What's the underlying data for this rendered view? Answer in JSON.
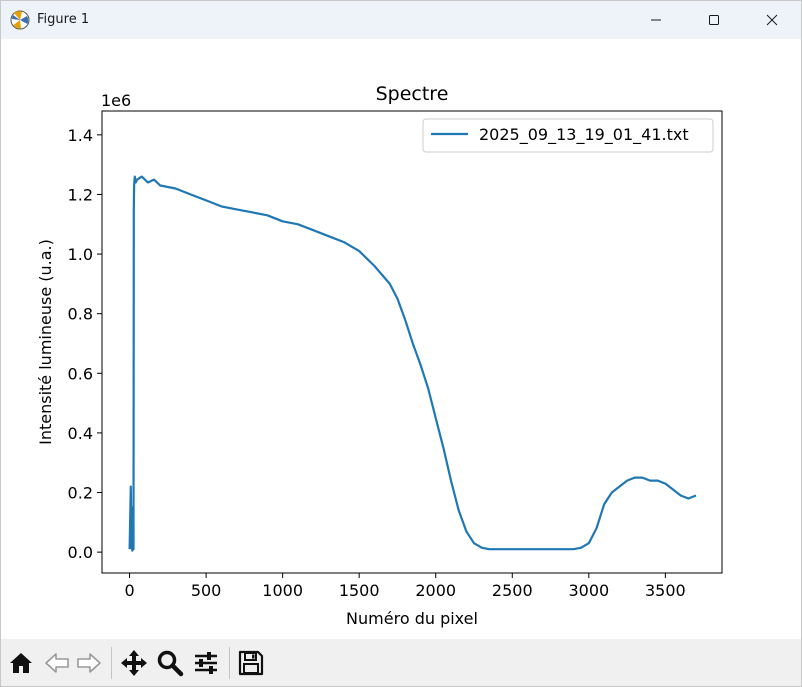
{
  "window": {
    "title": "Figure 1",
    "icon": "matplotlib-icon",
    "controls": [
      "minimize-icon",
      "maximize-icon",
      "close-icon"
    ]
  },
  "toolbar": {
    "buttons": [
      {
        "name": "home-button",
        "icon": "home-icon"
      },
      {
        "name": "back-button",
        "icon": "back-arrow-icon"
      },
      {
        "name": "forward-button",
        "icon": "forward-arrow-icon"
      },
      {
        "name": "pan-button",
        "icon": "move-icon"
      },
      {
        "name": "zoom-button",
        "icon": "zoom-icon"
      },
      {
        "name": "configure-subplots-button",
        "icon": "sliders-icon"
      },
      {
        "name": "save-button",
        "icon": "save-icon"
      }
    ]
  },
  "chart_data": {
    "type": "line",
    "title": "Spectre",
    "xlabel": "Numéro du pixel",
    "ylabel": "Intensité lumineuse (u.a.)",
    "y_offset_label": "1e6",
    "xlim": [
      -180,
      3870
    ],
    "ylim": [
      -0.07,
      1.48
    ],
    "xticks": [
      0,
      500,
      1000,
      1500,
      2000,
      2500,
      3000,
      3500
    ],
    "xtick_labels": [
      "0",
      "500",
      "1000",
      "1500",
      "2000",
      "2500",
      "3000",
      "3500"
    ],
    "yticks": [
      0.0,
      0.2,
      0.4,
      0.6,
      0.8,
      1.0,
      1.2,
      1.4
    ],
    "ytick_labels": [
      "0.0",
      "0.2",
      "0.4",
      "0.6",
      "0.8",
      "1.0",
      "1.2",
      "1.4"
    ],
    "grid": false,
    "legend_position": "top-right",
    "series": [
      {
        "name": "2025_09_13_19_01_41.txt",
        "color": "#1f77b4",
        "x": [
          0,
          8,
          12,
          18,
          22,
          26,
          28,
          30,
          34,
          40,
          50,
          80,
          120,
          160,
          200,
          300,
          400,
          500,
          600,
          700,
          800,
          900,
          1000,
          1100,
          1200,
          1300,
          1400,
          1500,
          1600,
          1650,
          1700,
          1750,
          1800,
          1850,
          1900,
          1950,
          2000,
          2050,
          2100,
          2150,
          2200,
          2250,
          2300,
          2350,
          2400,
          2500,
          2600,
          2700,
          2800,
          2900,
          2950,
          3000,
          3050,
          3100,
          3150,
          3200,
          3250,
          3300,
          3350,
          3400,
          3450,
          3500,
          3550,
          3600,
          3650,
          3700
        ],
        "y": [
          0.01,
          0.22,
          0.02,
          0.005,
          0.15,
          0.01,
          1.15,
          1.23,
          1.26,
          1.24,
          1.25,
          1.26,
          1.24,
          1.25,
          1.23,
          1.22,
          1.2,
          1.18,
          1.16,
          1.15,
          1.14,
          1.13,
          1.11,
          1.1,
          1.08,
          1.06,
          1.04,
          1.01,
          0.96,
          0.93,
          0.9,
          0.85,
          0.78,
          0.7,
          0.63,
          0.55,
          0.45,
          0.35,
          0.24,
          0.14,
          0.07,
          0.03,
          0.015,
          0.01,
          0.01,
          0.01,
          0.01,
          0.01,
          0.01,
          0.01,
          0.015,
          0.03,
          0.08,
          0.16,
          0.2,
          0.22,
          0.24,
          0.25,
          0.25,
          0.24,
          0.24,
          0.23,
          0.21,
          0.19,
          0.18,
          0.19
        ]
      }
    ]
  }
}
